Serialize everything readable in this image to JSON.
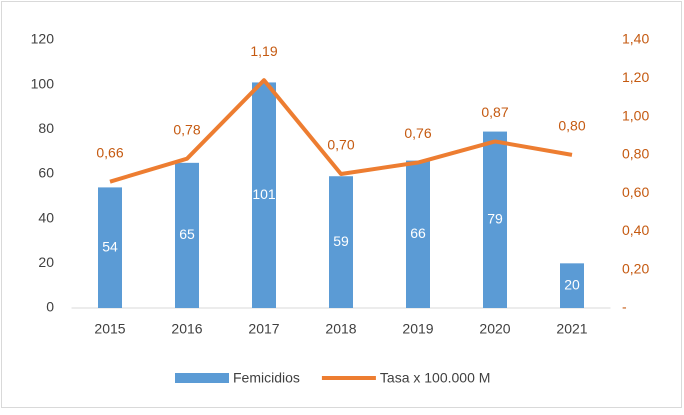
{
  "chart_data": {
    "type": "bar+line",
    "categories": [
      "2015",
      "2016",
      "2017",
      "2018",
      "2019",
      "2020",
      "2021"
    ],
    "series": [
      {
        "name": "Femicidios",
        "type": "bar",
        "color": "#5b9bd5",
        "values": [
          54,
          65,
          101,
          59,
          66,
          79,
          20
        ]
      },
      {
        "name": "Tasa x 100.000 M",
        "type": "line",
        "axis": "y2",
        "color": "#ed7d31",
        "values": [
          0.66,
          0.78,
          1.19,
          0.7,
          0.76,
          0.87,
          0.8
        ],
        "value_labels": [
          "0,66",
          "0,78",
          "1,19",
          "0,70",
          "0,76",
          "0,87",
          "0,80"
        ]
      }
    ],
    "ylim": [
      0,
      120
    ],
    "yticks": [
      0,
      20,
      40,
      60,
      80,
      100,
      120
    ],
    "y2lim": [
      0,
      1.4
    ],
    "y2ticks": [
      {
        "value": 0,
        "label": "-"
      },
      {
        "value": 0.2,
        "label": "0,20"
      },
      {
        "value": 0.4,
        "label": "0,40"
      },
      {
        "value": 0.6,
        "label": "0,60"
      },
      {
        "value": 0.8,
        "label": "0,80"
      },
      {
        "value": 1.0,
        "label": "1,00"
      },
      {
        "value": 1.2,
        "label": "1,20"
      },
      {
        "value": 1.4,
        "label": "1,40"
      }
    ],
    "grid": false,
    "legend": "bottom"
  }
}
